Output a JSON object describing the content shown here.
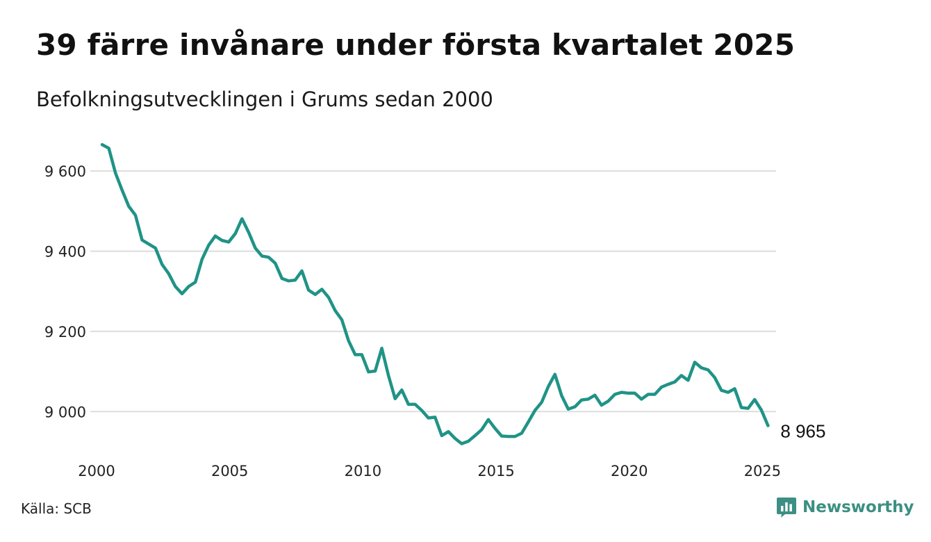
{
  "header": {
    "title": "39 färre invånare under första kvartalet 2025",
    "subtitle": "Befolkningsutvecklingen i Grums sedan 2000"
  },
  "footer": {
    "source": "Källa: SCB",
    "brand": "Newsworthy",
    "brand_icon": "newsworthy-logo-icon"
  },
  "colors": {
    "line": "#1f9386",
    "grid": "#dddddd",
    "brand": "#3d8f83"
  },
  "chart_data": {
    "type": "line",
    "title": "39 färre invånare under första kvartalet 2025",
    "subtitle": "Befolkningsutvecklingen i Grums sedan 2000",
    "xlabel": "",
    "ylabel": "",
    "xlim": [
      2000,
      2025.25
    ],
    "ylim": [
      8900,
      9680
    ],
    "x_ticks": [
      2000,
      2005,
      2010,
      2015,
      2020,
      2025
    ],
    "x_tick_labels": [
      "2000",
      "2005",
      "2010",
      "2015",
      "2020",
      "2025"
    ],
    "y_ticks": [
      9000,
      9200,
      9400,
      9600
    ],
    "y_tick_labels": [
      "9 000",
      "9 200",
      "9 400",
      "9 600"
    ],
    "grid": "horizontal",
    "legend": "none",
    "end_label": "8 965",
    "series": [
      {
        "x": [
          2000.0,
          2000.25,
          2000.5,
          2000.75,
          2001.0,
          2001.25,
          2001.5,
          2001.75,
          2002.0,
          2002.25,
          2002.5,
          2002.75,
          2003.0,
          2003.25,
          2003.5,
          2003.75,
          2004.0,
          2004.25,
          2004.5,
          2004.75,
          2005.0,
          2005.25,
          2005.5,
          2005.75,
          2006.0,
          2006.25,
          2006.5,
          2006.75,
          2007.0,
          2007.25,
          2007.5,
          2007.75,
          2008.0,
          2008.25,
          2008.5,
          2008.75,
          2009.0,
          2009.25,
          2009.5,
          2009.75,
          2010.0,
          2010.25,
          2010.5,
          2010.75,
          2011.0,
          2011.25,
          2011.5,
          2011.75,
          2012.0,
          2012.25,
          2012.5,
          2012.75,
          2013.0,
          2013.25,
          2013.5,
          2013.75,
          2014.0,
          2014.25,
          2014.5,
          2014.75,
          2015.0,
          2015.25,
          2015.5,
          2015.75,
          2016.0,
          2016.25,
          2016.5,
          2016.75,
          2017.0,
          2017.25,
          2017.5,
          2017.75,
          2018.0,
          2018.25,
          2018.5,
          2018.75,
          2019.0,
          2019.25,
          2019.5,
          2019.75,
          2020.0,
          2020.25,
          2020.5,
          2020.75,
          2021.0,
          2021.25,
          2021.5,
          2021.75,
          2022.0,
          2022.25,
          2022.5,
          2022.75,
          2023.0,
          2023.25,
          2023.5,
          2023.75,
          2024.0,
          2024.25,
          2024.5,
          2024.75,
          2025.0
        ],
        "values": [
          9666,
          9657,
          9595,
          9552,
          9512,
          9490,
          9428,
          9418,
          9408,
          9367,
          9344,
          9312,
          9294,
          9312,
          9323,
          9380,
          9415,
          9438,
          9427,
          9423,
          9444,
          9481,
          9447,
          9408,
          9388,
          9385,
          9370,
          9332,
          9326,
          9328,
          9351,
          9303,
          9292,
          9305,
          9285,
          9252,
          9229,
          9177,
          9142,
          9142,
          9099,
          9101,
          9158,
          9090,
          9032,
          9054,
          9018,
          9018,
          9003,
          8984,
          8986,
          8940,
          8950,
          8933,
          8920,
          8926,
          8940,
          8955,
          8980,
          8958,
          8939,
          8938,
          8938,
          8946,
          8974,
          9003,
          9023,
          9062,
          9093,
          9040,
          9006,
          9012,
          9029,
          9031,
          9041,
          9016,
          9026,
          9043,
          9048,
          9046,
          9046,
          9031,
          9043,
          9043,
          9061,
          9068,
          9074,
          9090,
          9078,
          9123,
          9109,
          9104,
          9085,
          9053,
          9048,
          9057,
          9010,
          9008,
          9030,
          9004,
          8965
        ]
      }
    ]
  }
}
